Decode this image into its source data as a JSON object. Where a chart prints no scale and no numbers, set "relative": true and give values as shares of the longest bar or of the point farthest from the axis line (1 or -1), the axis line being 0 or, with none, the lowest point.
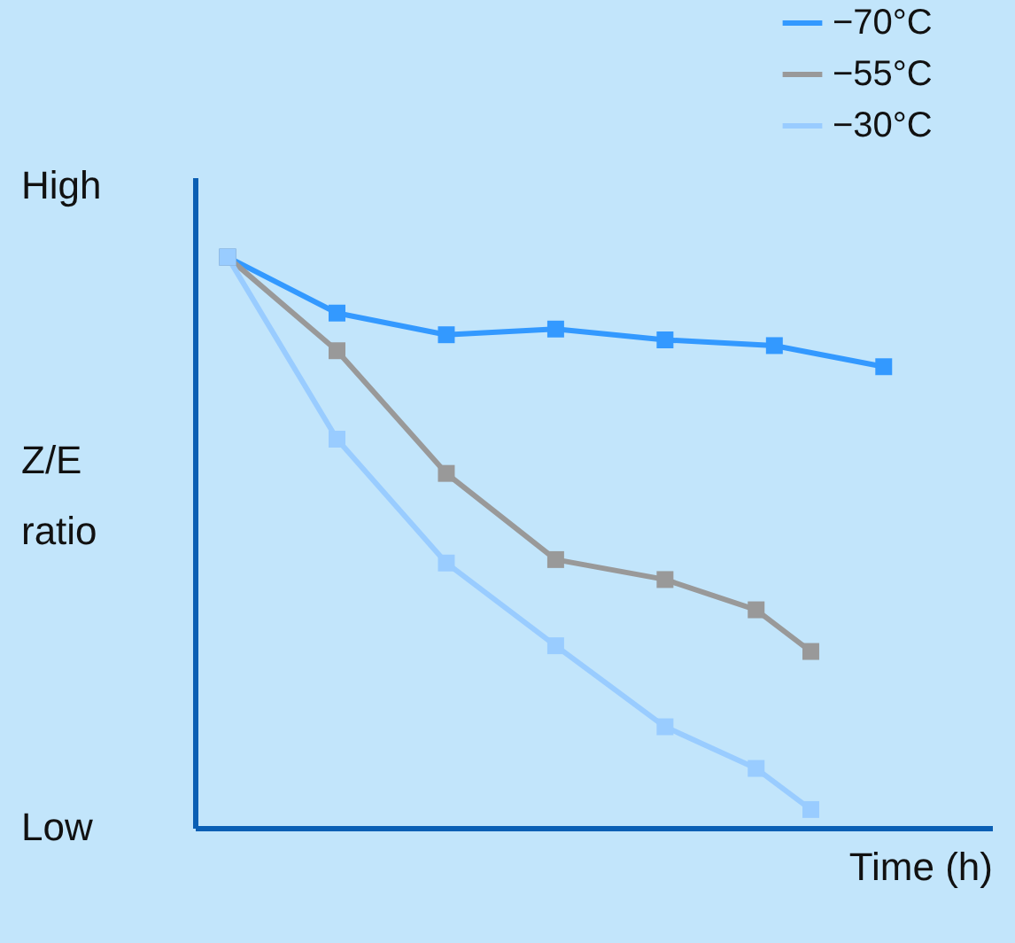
{
  "chart_data": {
    "type": "line",
    "relative": true,
    "xlabel": "Time (h)",
    "ylabel": "Z/E ratio",
    "annotations": [
      "High",
      "Low"
    ],
    "categories": [
      null,
      null,
      null,
      null,
      null,
      null,
      null,
      null,
      null,
      null,
      null,
      null,
      null,
      null,
      null,
      null,
      null,
      null,
      null,
      null,
      null,
      null,
      null,
      null,
      null,
      null,
      null,
      null,
      null,
      null,
      null,
      null,
      null,
      null,
      null,
      null,
      null
    ],
    "tick_labels": false,
    "legend": "top right",
    "marker": "square",
    "line_style": "solid",
    "grid": false,
    "series": [
      {
        "name": "−70°C",
        "color": "#3399ff",
        "values": [
          1,
          null,
          null,
          null,
          null,
          null,
          0.902,
          null,
          null,
          null,
          null,
          null,
          0.864,
          null,
          null,
          null,
          null,
          null,
          0.874,
          null,
          null,
          null,
          null,
          null,
          0.855,
          null,
          null,
          null,
          null,
          null,
          0.845,
          null,
          null,
          null,
          null,
          null,
          0.808
        ]
      },
      {
        "name": "−55°C",
        "color": "#999999",
        "values": [
          1,
          null,
          null,
          null,
          null,
          null,
          0.836,
          null,
          null,
          null,
          null,
          null,
          0.621,
          null,
          null,
          null,
          null,
          null,
          0.47,
          null,
          null,
          null,
          null,
          null,
          0.435,
          null,
          null,
          null,
          null,
          0.382,
          null,
          null,
          0.309,
          null,
          null,
          null,
          null
        ]
      },
      {
        "name": "−30°C",
        "color": "#99ccff",
        "values": [
          1,
          null,
          null,
          null,
          null,
          null,
          0.681,
          null,
          null,
          null,
          null,
          null,
          0.464,
          null,
          null,
          null,
          null,
          null,
          0.319,
          null,
          null,
          null,
          null,
          null,
          0.177,
          null,
          null,
          null,
          null,
          0.104,
          null,
          null,
          0.032,
          null,
          null,
          null,
          null
        ]
      }
    ]
  }
}
